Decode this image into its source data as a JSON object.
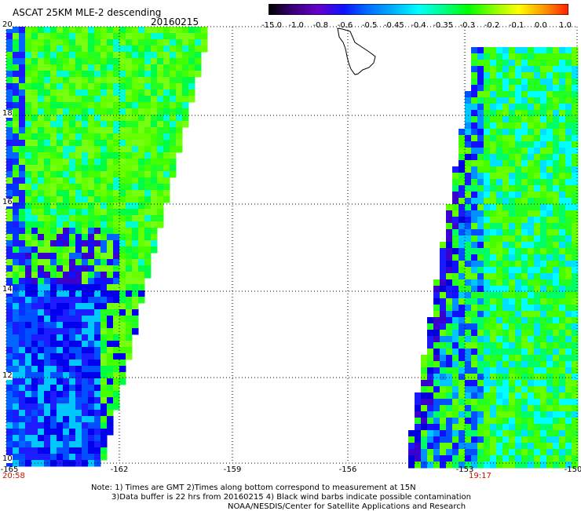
{
  "header": {
    "title": "ASCAT 25KM MLE-2 descending",
    "date": "20160215"
  },
  "colorbar": {
    "labels": [
      "-15.0",
      "-1.0",
      "-0.8",
      "-0.6",
      "-0.5",
      "-0.45",
      "-0.4",
      "-0.35",
      "-0.3",
      "-0.2",
      "-0.1",
      "0.0",
      "1.0"
    ],
    "colors": [
      "#000000",
      "#3a007a",
      "#6600cc",
      "#1010ff",
      "#0070ff",
      "#00b0ff",
      "#00ffff",
      "#00ff88",
      "#00ff00",
      "#88ff00",
      "#ffff00",
      "#ff9900",
      "#ff2000"
    ]
  },
  "map": {
    "lat_labels": [
      "20",
      "18",
      "16",
      "14",
      "12",
      "10"
    ],
    "lon_labels": [
      "-165",
      "-162",
      "-159",
      "-156",
      "-153",
      "-150"
    ],
    "time_left": "20:58",
    "time_right": "19:17"
  },
  "footer": {
    "note_line1": "Note: 1) Times are GMT 2)Times along bottom correspond to measurement at 15N",
    "note_line2": "3)Data buffer is 22 hrs from 20160215 4) Black wind barbs indicate possible contamination",
    "credit": "NOAA/NESDIS/Center for Satellite Applications and Research"
  }
}
